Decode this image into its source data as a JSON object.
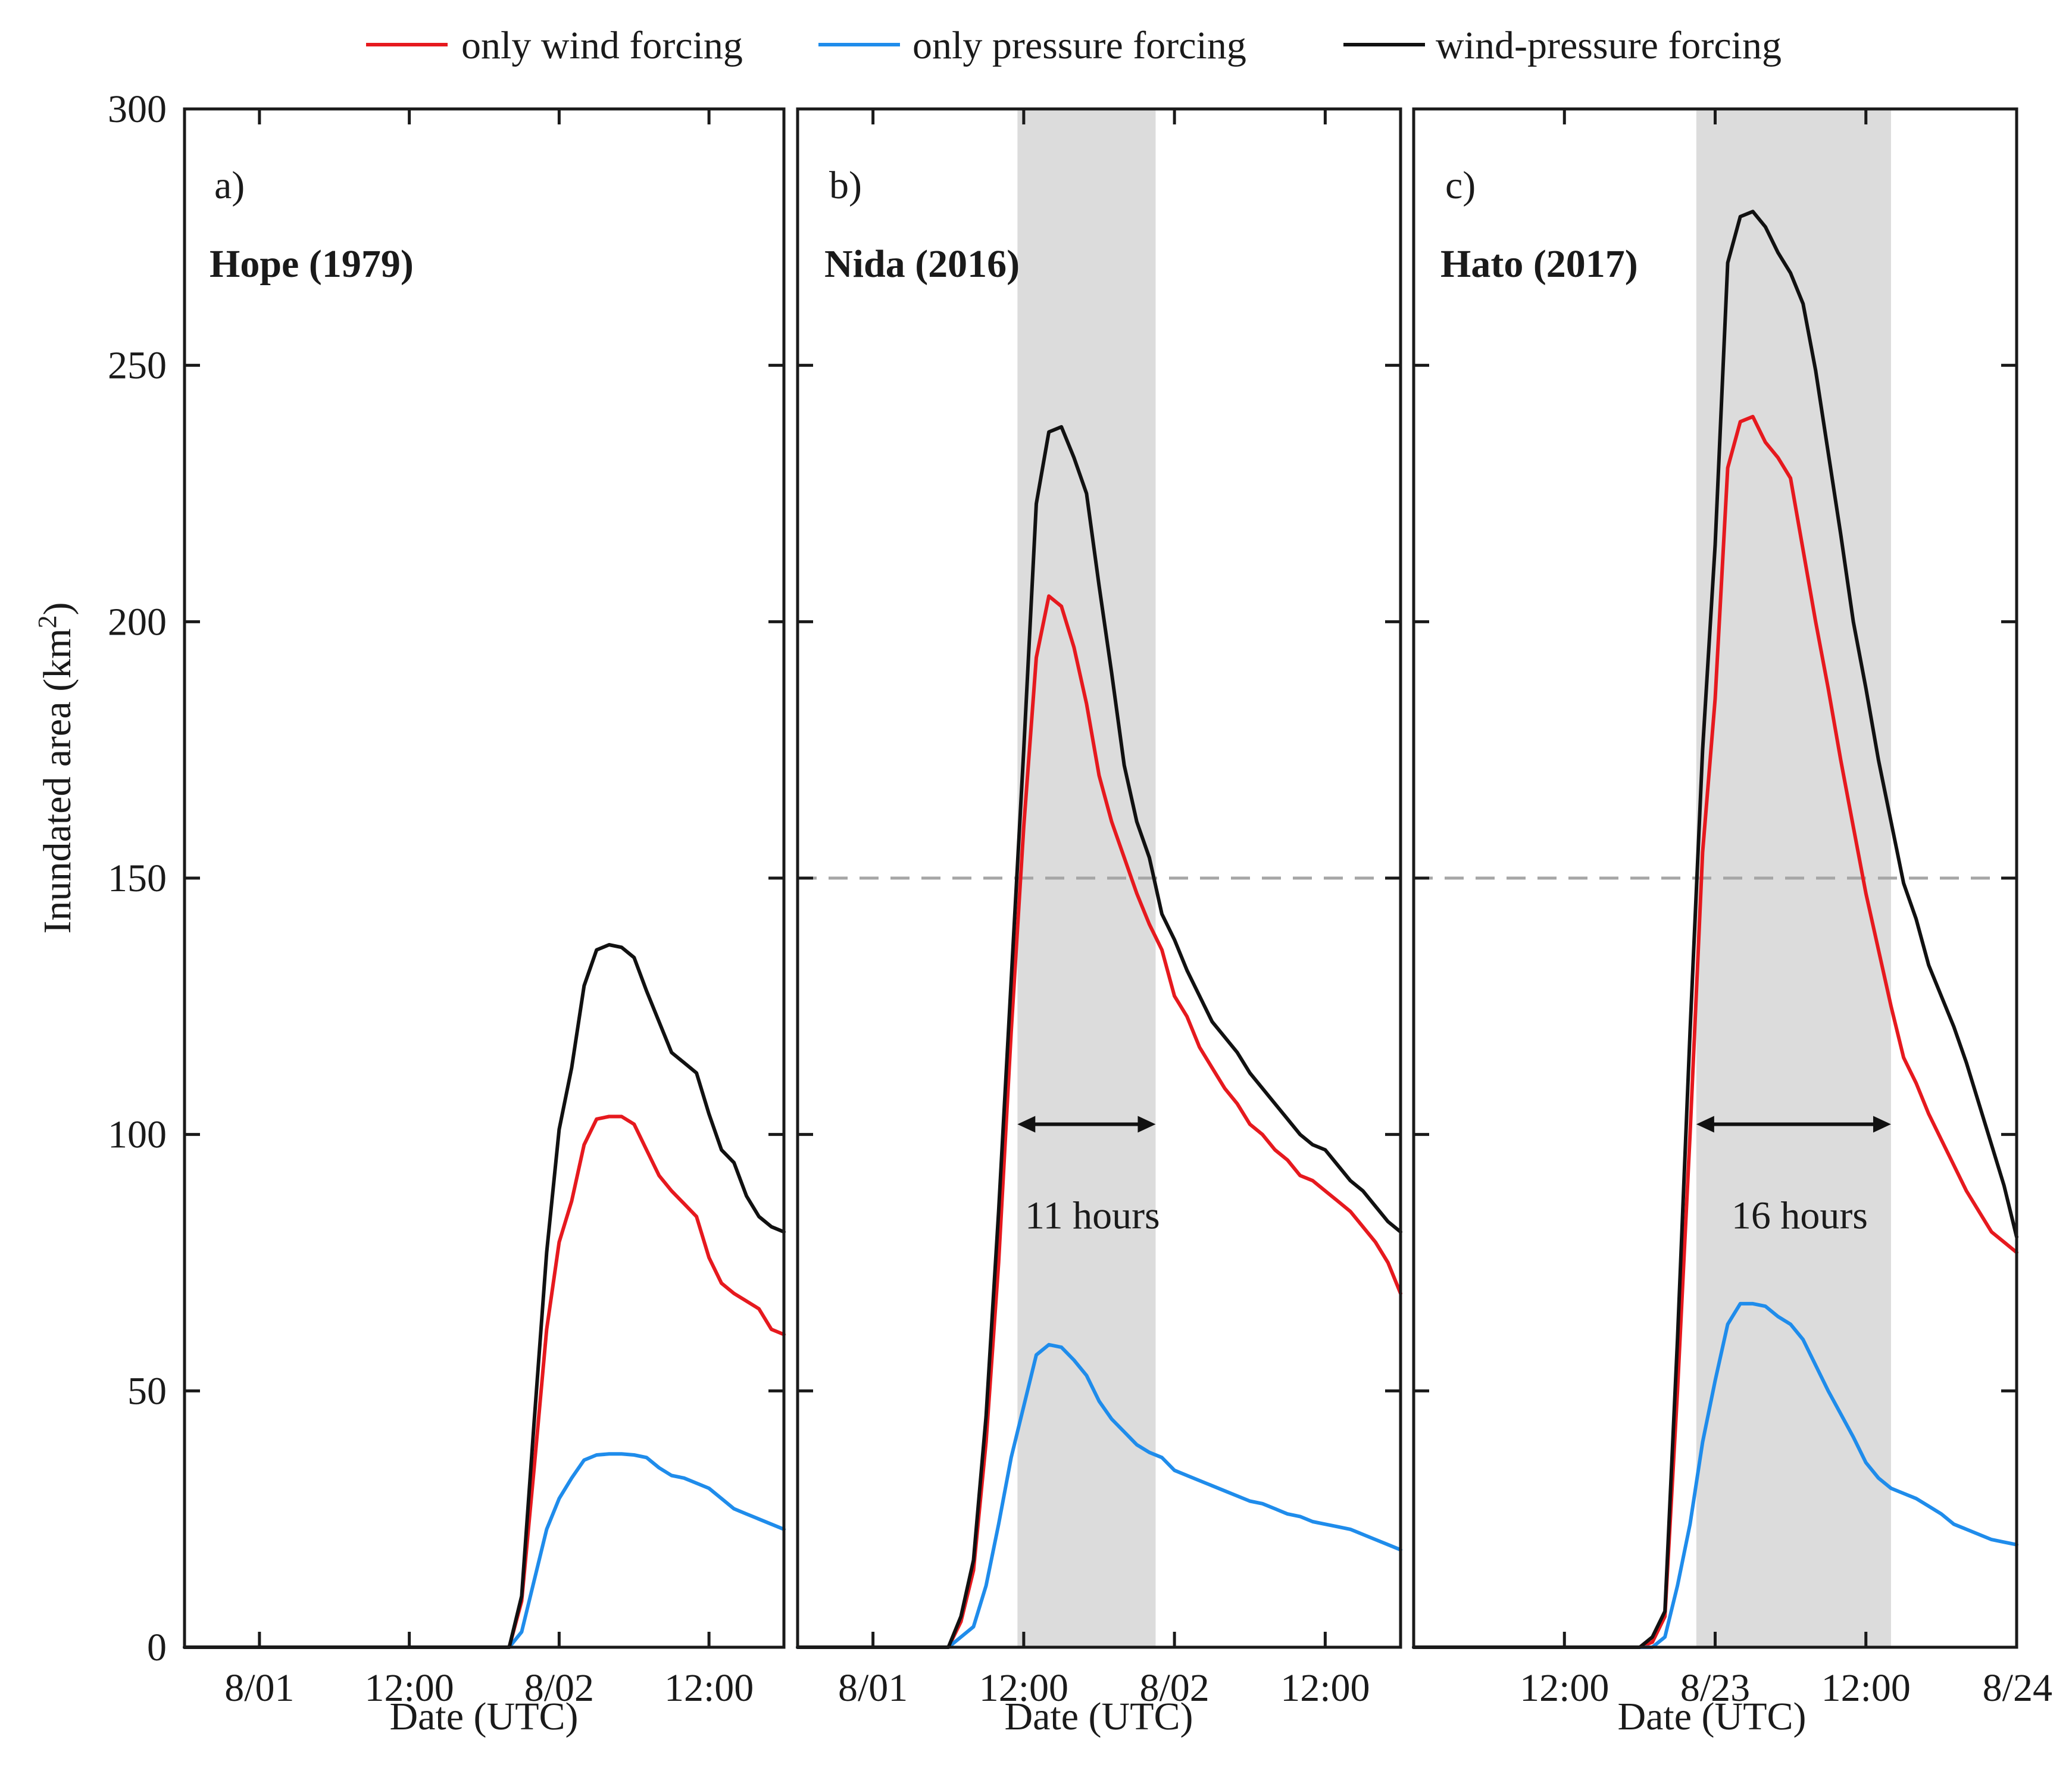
{
  "legend": [
    {
      "label": "only wind forcing",
      "color": "#e6191e"
    },
    {
      "label": "only pressure forcing",
      "color": "#1f8ceb"
    },
    {
      "label": "wind-pressure forcing",
      "color": "#111111"
    }
  ],
  "y_axis": {
    "label": "Inundated area (km",
    "label_sup": "2",
    "label_close": ")",
    "ticks": [
      0,
      50,
      100,
      150,
      200,
      250,
      300
    ],
    "tick_labels": [
      "0",
      "50",
      "100",
      "150",
      "200",
      "250",
      "300"
    ],
    "ylim": [
      0,
      300
    ]
  },
  "x_axis_label": "Date (UTC)",
  "threshold": 150,
  "colors": {
    "wind": "#e6191e",
    "pressure": "#1f8ceb",
    "combined": "#111111",
    "shade": "#dcdcdc",
    "threshold": "#a6a6a6"
  },
  "chart_data": [
    {
      "type": "line",
      "letter": "a)",
      "title": "Hope (1979)",
      "xlim": [
        0,
        48
      ],
      "x_ticks": [
        6,
        18,
        30,
        42
      ],
      "x_tick_labels": [
        "8/01",
        "12:00",
        "8/02",
        "12:00"
      ],
      "show_y_tick_labels": true,
      "shade": null,
      "annotation": null,
      "series": [
        {
          "name": "only wind forcing",
          "key": "wind",
          "x": [
            0,
            26,
            27,
            28,
            29,
            30,
            31,
            32,
            33,
            34,
            35,
            36,
            37,
            38,
            39,
            40,
            41,
            42,
            43,
            44,
            45,
            46,
            47,
            48
          ],
          "y": [
            0,
            0,
            9,
            35,
            62,
            79,
            87,
            98,
            103,
            103.5,
            103.5,
            102,
            97,
            92,
            89,
            86.5,
            84,
            76,
            71,
            69,
            67.5,
            66,
            62,
            61
          ]
        },
        {
          "name": "only pressure forcing",
          "key": "pressure",
          "x": [
            0,
            26,
            27,
            28,
            29,
            30,
            31,
            32,
            33,
            34,
            35,
            36,
            37,
            38,
            39,
            40,
            41,
            42,
            43,
            44,
            45,
            46,
            47,
            48
          ],
          "y": [
            0,
            0,
            3,
            13,
            23,
            29,
            33,
            36.5,
            37.5,
            37.7,
            37.7,
            37.5,
            37,
            35,
            33.5,
            33,
            32,
            31,
            29,
            27,
            26,
            25,
            24,
            23
          ]
        },
        {
          "name": "wind-pressure forcing",
          "key": "combined",
          "x": [
            0,
            26,
            27,
            28,
            29,
            30,
            31,
            32,
            33,
            34,
            35,
            36,
            37,
            38,
            39,
            40,
            41,
            42,
            43,
            44,
            45,
            46,
            47,
            48
          ],
          "y": [
            0,
            0,
            10,
            44,
            77,
            101,
            113,
            129,
            136,
            137,
            136.5,
            134.5,
            128,
            122,
            116,
            114,
            112,
            104,
            97,
            94.5,
            88,
            84,
            82,
            81
          ]
        }
      ]
    },
    {
      "type": "line",
      "letter": "b)",
      "title": "Nida (2016)",
      "xlim": [
        0,
        48
      ],
      "x_ticks": [
        6,
        18,
        30,
        42
      ],
      "x_tick_labels": [
        "8/01",
        "12:00",
        "8/02",
        "12:00"
      ],
      "show_y_tick_labels": false,
      "shade": [
        17.5,
        28.5
      ],
      "annotation": {
        "text": "11 hours",
        "y": 102
      },
      "series": [
        {
          "name": "only wind forcing",
          "key": "wind",
          "x": [
            0,
            12,
            13,
            14,
            15,
            16,
            17,
            18,
            19,
            20,
            21,
            22,
            23,
            24,
            25,
            26,
            27,
            28,
            29,
            30,
            31,
            32,
            33,
            34,
            35,
            36,
            37,
            38,
            39,
            40,
            41,
            42,
            43,
            44,
            45,
            46,
            47,
            48
          ],
          "y": [
            0,
            0,
            5,
            15,
            40,
            75,
            120,
            160,
            193,
            205,
            203,
            195,
            184,
            170,
            161,
            154,
            147,
            141,
            136,
            127,
            123,
            117,
            113,
            109,
            106,
            102,
            100,
            97,
            95,
            92,
            91,
            89,
            87,
            85,
            82,
            79,
            75,
            69
          ]
        },
        {
          "name": "only pressure forcing",
          "key": "pressure",
          "x": [
            0,
            12,
            13,
            14,
            15,
            16,
            17,
            18,
            19,
            20,
            21,
            22,
            23,
            24,
            25,
            26,
            27,
            28,
            29,
            30,
            31,
            32,
            33,
            34,
            35,
            36,
            37,
            38,
            39,
            40,
            41,
            42,
            43,
            44,
            45,
            46,
            47,
            48
          ],
          "y": [
            0,
            0,
            2,
            4,
            12,
            24,
            37,
            47,
            57,
            59,
            58.5,
            56,
            53,
            48,
            44.5,
            42,
            39.5,
            38,
            37,
            34.5,
            33.5,
            32.5,
            31.5,
            30.5,
            29.5,
            28.5,
            28,
            27,
            26,
            25.5,
            24.5,
            24,
            23.5,
            23,
            22,
            21,
            20,
            19
          ]
        },
        {
          "name": "wind-pressure forcing",
          "key": "combined",
          "x": [
            0,
            12,
            13,
            14,
            15,
            16,
            17,
            18,
            19,
            20,
            21,
            22,
            23,
            24,
            25,
            26,
            27,
            28,
            29,
            30,
            31,
            32,
            33,
            34,
            35,
            36,
            37,
            38,
            39,
            40,
            41,
            42,
            43,
            44,
            45,
            46,
            47,
            48
          ],
          "y": [
            0,
            0,
            6,
            17,
            45,
            85,
            130,
            175,
            223,
            237,
            238,
            232,
            225,
            207,
            190,
            172,
            161,
            154,
            143,
            138,
            132,
            127,
            122,
            119,
            116,
            112,
            109,
            106,
            103,
            100,
            98,
            97,
            94,
            91,
            89,
            86,
            83,
            81
          ]
        }
      ]
    },
    {
      "type": "line",
      "letter": "c)",
      "title": "Hato (2017)",
      "xlim": [
        0,
        48
      ],
      "x_ticks": [
        12,
        24,
        36,
        48
      ],
      "x_tick_labels": [
        "12:00",
        "8/23",
        "12:00",
        "8/24"
      ],
      "show_y_tick_labels": false,
      "shade": [
        22.5,
        38
      ],
      "annotation": {
        "text": "16 hours",
        "y": 102
      },
      "series": [
        {
          "name": "only wind forcing",
          "key": "wind",
          "x": [
            0,
            18,
            19,
            20,
            21,
            22,
            23,
            24,
            25,
            26,
            27,
            28,
            29,
            30,
            31,
            32,
            33,
            34,
            35,
            36,
            37,
            38,
            39,
            40,
            41,
            42,
            43,
            44,
            45,
            46,
            47,
            48
          ],
          "y": [
            0,
            0,
            1,
            6,
            50,
            100,
            155,
            185,
            230,
            239,
            240,
            235,
            232,
            228,
            214,
            200,
            187,
            173,
            160,
            147,
            136,
            125,
            115,
            110,
            104,
            99,
            94,
            89,
            85,
            81,
            79,
            77
          ]
        },
        {
          "name": "only pressure forcing",
          "key": "pressure",
          "x": [
            0,
            18,
            19,
            20,
            21,
            22,
            23,
            24,
            25,
            26,
            27,
            28,
            29,
            30,
            31,
            32,
            33,
            34,
            35,
            36,
            37,
            38,
            39,
            40,
            41,
            42,
            43,
            44,
            45,
            46,
            47,
            48
          ],
          "y": [
            0,
            0,
            0,
            2,
            12,
            24,
            40,
            52,
            63,
            67,
            67,
            66.5,
            64.5,
            63,
            60,
            55,
            50,
            45.5,
            41,
            36,
            33,
            31,
            30,
            29,
            27.5,
            26,
            24,
            23,
            22,
            21,
            20.5,
            20
          ]
        },
        {
          "name": "wind-pressure forcing",
          "key": "combined",
          "x": [
            0,
            18,
            19,
            20,
            21,
            22,
            23,
            24,
            25,
            26,
            27,
            28,
            29,
            30,
            31,
            32,
            33,
            34,
            35,
            36,
            37,
            38,
            39,
            40,
            41,
            42,
            43,
            44,
            45,
            46,
            47,
            48
          ],
          "y": [
            0,
            0,
            2,
            7,
            60,
            120,
            175,
            215,
            270,
            279,
            280,
            277,
            272,
            268,
            262,
            249,
            233,
            217,
            200,
            187,
            173,
            161,
            149,
            142,
            133,
            127,
            121,
            114,
            106,
            98,
            90,
            80
          ]
        }
      ]
    }
  ]
}
